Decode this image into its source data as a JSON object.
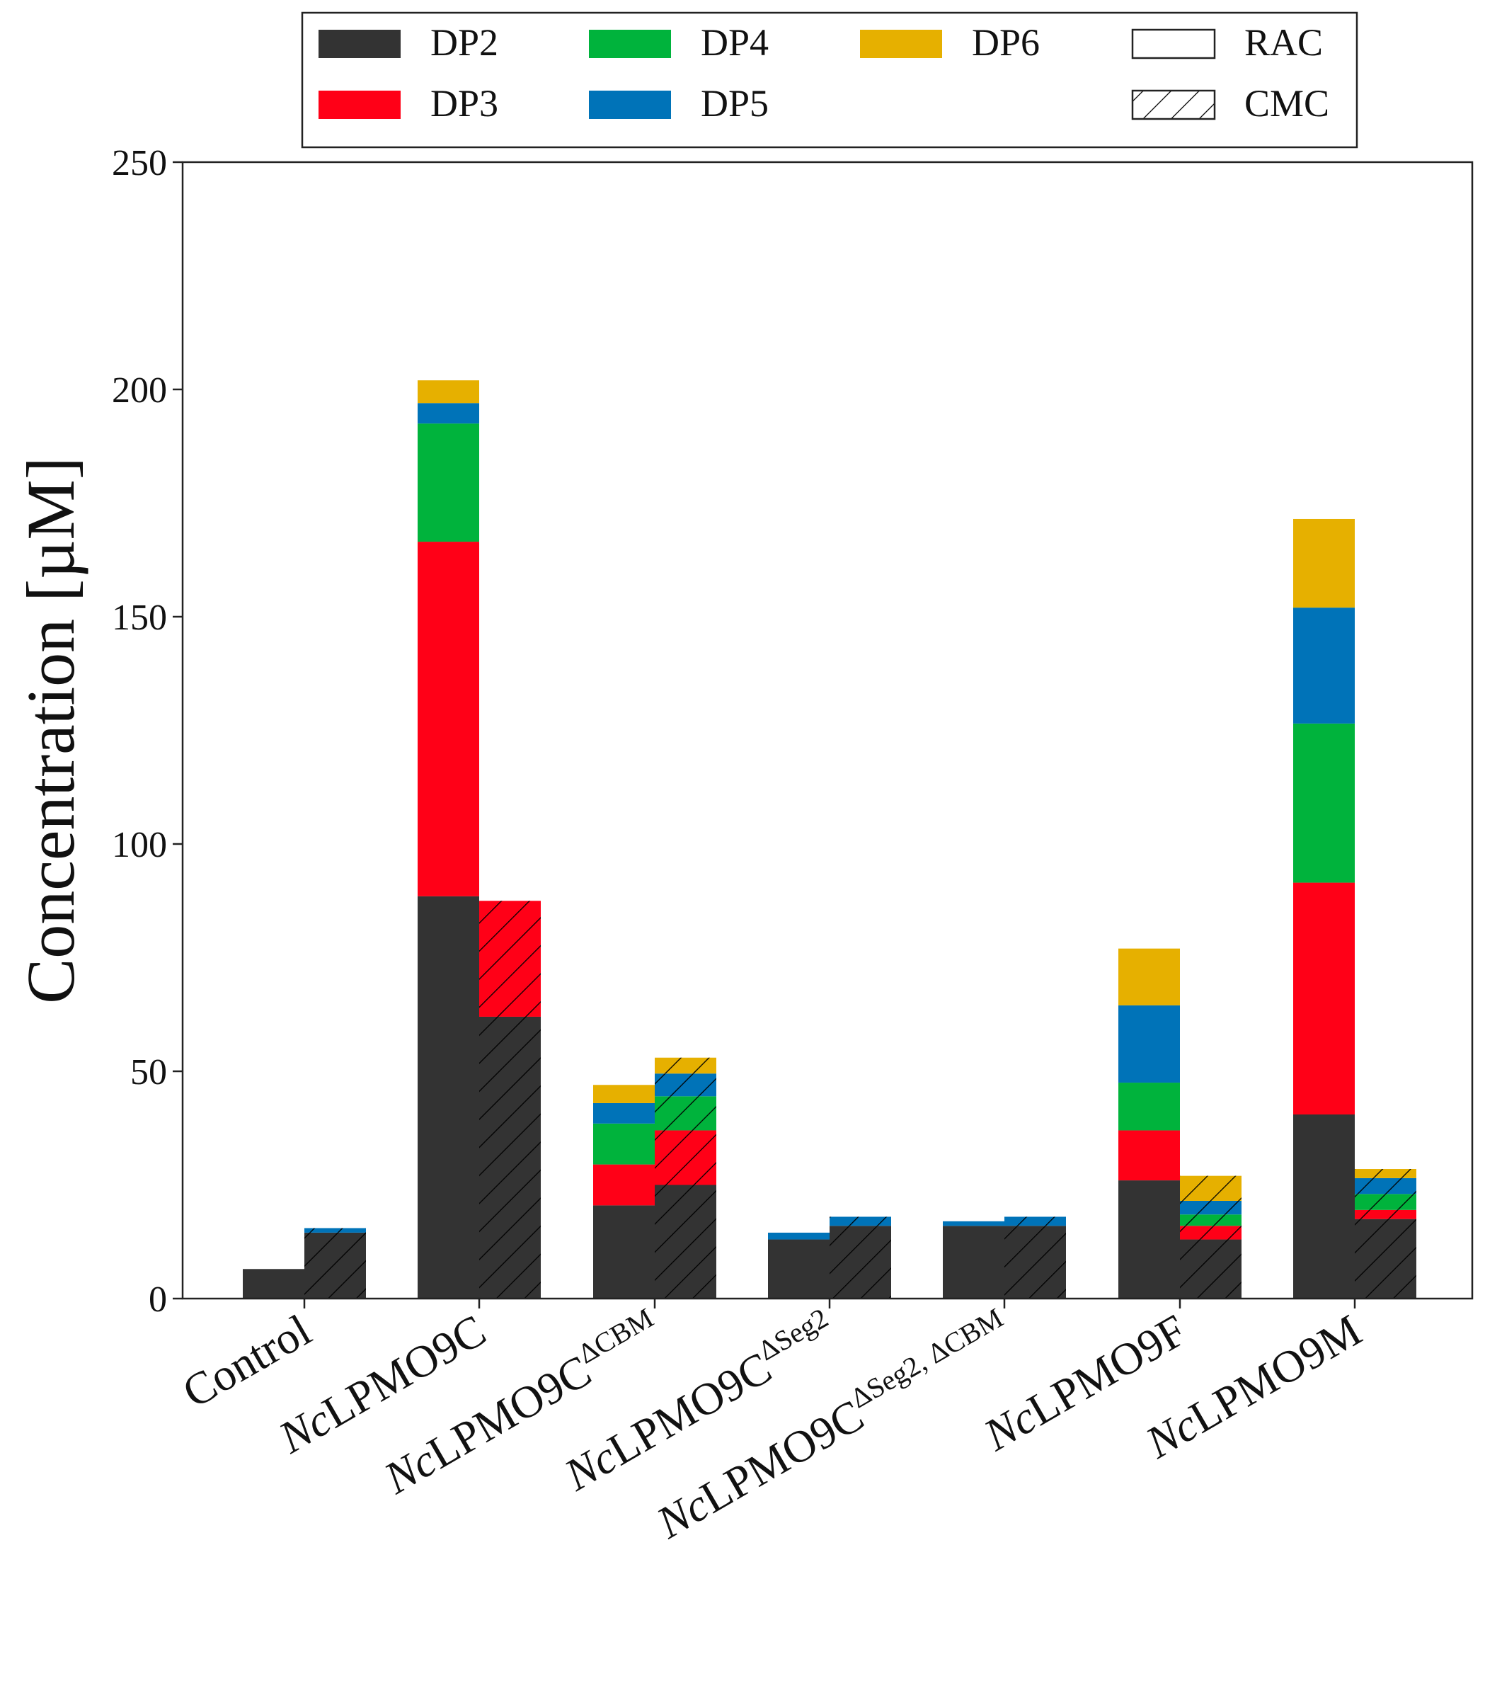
{
  "chart_data": {
    "type": "bar",
    "subtype": "stacked-grouped",
    "title": "",
    "xlabel": "",
    "ylabel": "Concentration [µM]",
    "ylim": [
      0,
      250
    ],
    "yticks": [
      0,
      50,
      100,
      150,
      200,
      250
    ],
    "grid": false,
    "legend_position": "top-center-outside",
    "categories": [
      {
        "prefix": "",
        "main": "Control",
        "sup": ""
      },
      {
        "prefix": "Nc",
        "main": "LPMO9C",
        "sup": ""
      },
      {
        "prefix": "Nc",
        "main": "LPMO9C",
        "sup": "ΔCBM"
      },
      {
        "prefix": "Nc",
        "main": "LPMO9C",
        "sup": "ΔSeg2"
      },
      {
        "prefix": "Nc",
        "main": "LPMO9C",
        "sup": "ΔSeg2, ΔCBM"
      },
      {
        "prefix": "Nc",
        "main": "LPMO9F",
        "sup": ""
      },
      {
        "prefix": "Nc",
        "main": "LPMO9M",
        "sup": ""
      }
    ],
    "substrates": [
      {
        "name": "RAC",
        "hatch": false
      },
      {
        "name": "CMC",
        "hatch": true
      }
    ],
    "series": [
      {
        "name": "DP2",
        "color": "#333333",
        "RAC": [
          6.5,
          88.5,
          20.5,
          13,
          16,
          26,
          40.5
        ],
        "CMC": [
          14.5,
          62,
          25,
          16,
          16,
          13,
          17.5
        ]
      },
      {
        "name": "DP3",
        "color": "#ff0017",
        "RAC": [
          0,
          78,
          9,
          0,
          0,
          11,
          51
        ],
        "CMC": [
          0,
          25.5,
          12,
          0,
          0,
          3,
          2
        ]
      },
      {
        "name": "DP4",
        "color": "#00b33c",
        "RAC": [
          0,
          26,
          9,
          0,
          0,
          10.5,
          35
        ],
        "CMC": [
          0,
          0,
          7.5,
          0,
          0,
          2.5,
          3.5
        ]
      },
      {
        "name": "DP5",
        "color": "#0073b8",
        "RAC": [
          0,
          4.5,
          4.5,
          1.5,
          1,
          17,
          25.5
        ],
        "CMC": [
          1,
          0,
          5,
          2,
          2,
          3,
          3.5
        ]
      },
      {
        "name": "DP6",
        "color": "#e6b000",
        "RAC": [
          0,
          5,
          4,
          0,
          0,
          12.5,
          19.5
        ],
        "CMC": [
          0,
          0,
          3.5,
          0,
          0,
          5.5,
          2
        ]
      }
    ]
  }
}
